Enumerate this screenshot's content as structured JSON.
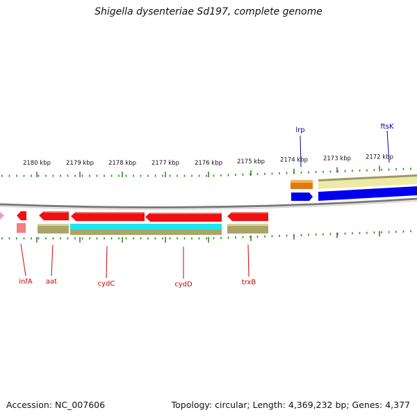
{
  "title": "Shigella dysenteriae Sd197, complete genome",
  "footer": {
    "accession": "Accession: NC_007606",
    "summary": "Topology: circular; Length: 4,369,232 bp; Genes: 4,377"
  },
  "colors": {
    "forward_gene": "#ee1111",
    "reverse_gene": "#0000ee",
    "cds_olive": "#aaa66a",
    "cds_cyan": "#1ee6ee",
    "cds_pale": "#efe9a8",
    "cds_orange": "#e07a10",
    "cds_pink": "#ee8080",
    "tick": "#2a8a1e",
    "backbone": "#8a8a8a",
    "label_red": "#cc0000",
    "label_blue": "#000099"
  },
  "ruler": {
    "ticks": [
      "2180 kbp",
      "2179 kbp",
      "2178 kbp",
      "2177 kbp",
      "2176 kbp",
      "2175 kbp",
      "2174 kbp",
      "2173 kbp",
      "2172 kbp"
    ]
  },
  "genes": {
    "forward_strand": [
      "lrp",
      "ftsK"
    ],
    "reverse_strand": [
      "infA",
      "aat",
      "cydC",
      "cydD",
      "trxB"
    ]
  }
}
